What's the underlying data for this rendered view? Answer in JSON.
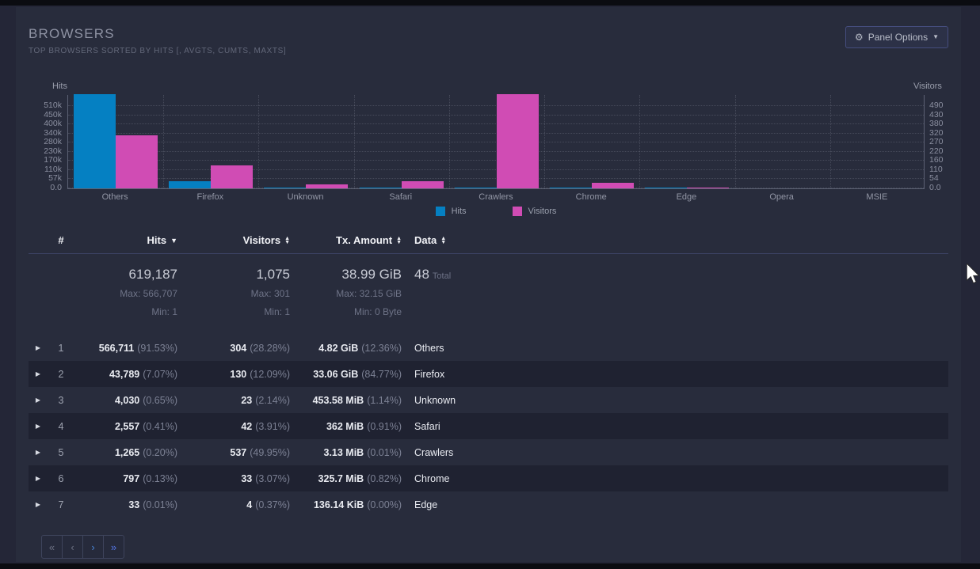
{
  "panel": {
    "title": "BROWSERS",
    "subtitle": "TOP BROWSERS SORTED BY HITS [, AVGTS, CUMTS, MAXTS]",
    "options_button": "Panel Options"
  },
  "colors": {
    "hits": "#0580c2",
    "visitors": "#d04cb4",
    "panel_bg": "#282c3c",
    "row_stripe": "#1f2231"
  },
  "chart_data": {
    "type": "bar",
    "categories": [
      "Others",
      "Firefox",
      "Unknown",
      "Safari",
      "Crawlers",
      "Chrome",
      "Edge",
      "Opera",
      "MSIE"
    ],
    "series": [
      {
        "name": "Hits",
        "axis": "left",
        "color": "#0580c2",
        "max": 566711,
        "values": [
          566711,
          43789,
          4030,
          2557,
          1265,
          797,
          33,
          0,
          0
        ]
      },
      {
        "name": "Visitors",
        "axis": "right",
        "color": "#d04cb4",
        "max": 537,
        "values": [
          304,
          130,
          23,
          42,
          537,
          33,
          4,
          0,
          0
        ]
      }
    ],
    "left_axis": {
      "label": "Hits",
      "ticks": [
        "510k",
        "450k",
        "400k",
        "340k",
        "280k",
        "230k",
        "170k",
        "110k",
        "57k",
        "0.0"
      ]
    },
    "right_axis": {
      "label": "Visitors",
      "ticks": [
        "490",
        "430",
        "380",
        "320",
        "270",
        "220",
        "160",
        "110",
        "54",
        "0.0"
      ]
    },
    "legend_position": "bottom-center",
    "grid": true
  },
  "table": {
    "headers": [
      {
        "label": "#",
        "sort": null
      },
      {
        "label": "Hits",
        "sort": "desc"
      },
      {
        "label": "Visitors",
        "sort": "both"
      },
      {
        "label": "Tx. Amount",
        "sort": "both"
      },
      {
        "label": "Data",
        "sort": "both"
      }
    ],
    "summary": {
      "hits": {
        "total": "619,187",
        "max": "Max: 566,707",
        "min": "Min: 1"
      },
      "visitors": {
        "total": "1,075",
        "max": "Max: 301",
        "min": "Min: 1"
      },
      "tx": {
        "total": "38.99 GiB",
        "max": "Max: 32.15 GiB",
        "min": "Min: 0 Byte"
      },
      "data": {
        "total": "48",
        "label": "Total"
      }
    },
    "rows": [
      {
        "idx": "1",
        "hits": "566,711",
        "hits_pct": "(91.53%)",
        "visitors": "304",
        "visitors_pct": "(28.28%)",
        "tx": "4.82 GiB",
        "tx_pct": "(12.36%)",
        "data": "Others"
      },
      {
        "idx": "2",
        "hits": "43,789",
        "hits_pct": "(7.07%)",
        "visitors": "130",
        "visitors_pct": "(12.09%)",
        "tx": "33.06 GiB",
        "tx_pct": "(84.77%)",
        "data": "Firefox"
      },
      {
        "idx": "3",
        "hits": "4,030",
        "hits_pct": "(0.65%)",
        "visitors": "23",
        "visitors_pct": "(2.14%)",
        "tx": "453.58 MiB",
        "tx_pct": "(1.14%)",
        "data": "Unknown"
      },
      {
        "idx": "4",
        "hits": "2,557",
        "hits_pct": "(0.41%)",
        "visitors": "42",
        "visitors_pct": "(3.91%)",
        "tx": "362 MiB",
        "tx_pct": "(0.91%)",
        "data": "Safari"
      },
      {
        "idx": "5",
        "hits": "1,265",
        "hits_pct": "(0.20%)",
        "visitors": "537",
        "visitors_pct": "(49.95%)",
        "tx": "3.13 MiB",
        "tx_pct": "(0.01%)",
        "data": "Crawlers"
      },
      {
        "idx": "6",
        "hits": "797",
        "hits_pct": "(0.13%)",
        "visitors": "33",
        "visitors_pct": "(3.07%)",
        "tx": "325.7 MiB",
        "tx_pct": "(0.82%)",
        "data": "Chrome"
      },
      {
        "idx": "7",
        "hits": "33",
        "hits_pct": "(0.01%)",
        "visitors": "4",
        "visitors_pct": "(0.37%)",
        "tx": "136.14 KiB",
        "tx_pct": "(0.00%)",
        "data": "Edge"
      }
    ]
  },
  "pagination": {
    "first": "«",
    "prev": "‹",
    "next": "›",
    "last": "»"
  }
}
